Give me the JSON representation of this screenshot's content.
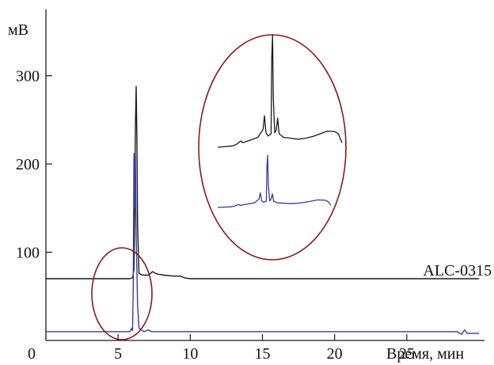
{
  "chart_data": {
    "type": "line",
    "title": "",
    "xlabel": "Время, мин",
    "ylabel": "мВ",
    "xlim": [
      0,
      30
    ],
    "ylim": [
      0,
      350
    ],
    "x_ticks": [
      0,
      5,
      10,
      15,
      20,
      25
    ],
    "y_ticks": [
      100,
      200,
      300
    ],
    "grid": false,
    "annotations": [
      {
        "text": "ALC-0315",
        "x": 27.5,
        "y": 80
      }
    ],
    "series": [
      {
        "color": "#1a1a1a",
        "points": [
          [
            0,
            70
          ],
          [
            5.8,
            70
          ],
          [
            6.0,
            71
          ],
          [
            6.1,
            80
          ],
          [
            6.15,
            140
          ],
          [
            6.2,
            240
          ],
          [
            6.25,
            288
          ],
          [
            6.3,
            230
          ],
          [
            6.35,
            130
          ],
          [
            6.45,
            76
          ],
          [
            6.7,
            74
          ],
          [
            7.1,
            74
          ],
          [
            7.4,
            78
          ],
          [
            7.6,
            76
          ],
          [
            7.8,
            75
          ],
          [
            8.2,
            74
          ],
          [
            8.8,
            73
          ],
          [
            9.3,
            73
          ],
          [
            9.6,
            71
          ],
          [
            10,
            70
          ],
          [
            30,
            70
          ]
        ]
      },
      {
        "color": "#3a3aa8",
        "points": [
          [
            0,
            10
          ],
          [
            5.8,
            10
          ],
          [
            5.95,
            14
          ],
          [
            6.0,
            11
          ],
          [
            6.05,
            60
          ],
          [
            6.1,
            212
          ],
          [
            6.15,
            150
          ],
          [
            6.2,
            210
          ],
          [
            6.25,
            120
          ],
          [
            6.35,
            40
          ],
          [
            6.45,
            14
          ],
          [
            6.6,
            12
          ],
          [
            6.8,
            10
          ],
          [
            7.1,
            12
          ],
          [
            7.3,
            10
          ],
          [
            28.5,
            10
          ],
          [
            28.8,
            7
          ],
          [
            29.0,
            12
          ],
          [
            29.2,
            8
          ],
          [
            30,
            8
          ]
        ]
      }
    ],
    "inset": {
      "description_zoom_of_range": [
        4.5,
        9.5
      ],
      "series": [
        {
          "color": "#1a1a1a",
          "points": [
            [
              0,
              0
            ],
            [
              2,
              0.3
            ],
            [
              2.5,
              0.6
            ],
            [
              3,
              1.2
            ],
            [
              3.2,
              1.4
            ],
            [
              3.4,
              1.0
            ],
            [
              4.3,
              1.5
            ],
            [
              5.5,
              2.2
            ],
            [
              6.2,
              4.0
            ],
            [
              6.4,
              7.0
            ],
            [
              6.6,
              3.2
            ],
            [
              6.9,
              2.5
            ],
            [
              7.3,
              3.0
            ],
            [
              7.4,
              20.0
            ],
            [
              7.5,
              25.0
            ],
            [
              7.6,
              11.0
            ],
            [
              7.8,
              3.2
            ],
            [
              8.0,
              3.8
            ],
            [
              8.2,
              6.5
            ],
            [
              8.4,
              3.0
            ],
            [
              9.0,
              2.2
            ],
            [
              10,
              2.0
            ],
            [
              11,
              1.8
            ],
            [
              12,
              2.0
            ],
            [
              13,
              2.4
            ],
            [
              14,
              3.0
            ],
            [
              15,
              3.6
            ],
            [
              16,
              3.5
            ],
            [
              16.5,
              3.0
            ],
            [
              17,
              1.0
            ]
          ]
        },
        {
          "color": "#3a3aa8",
          "points": [
            [
              0,
              0
            ],
            [
              2,
              0.3
            ],
            [
              2.5,
              0.6
            ],
            [
              3,
              1.2
            ],
            [
              3.2,
              1.4
            ],
            [
              3.4,
              1.0
            ],
            [
              4.3,
              1.5
            ],
            [
              5.5,
              2.2
            ],
            [
              6.2,
              4.0
            ],
            [
              6.4,
              7.0
            ],
            [
              6.6,
              3.2
            ],
            [
              6.9,
              2.5
            ],
            [
              7.3,
              3.0
            ],
            [
              7.4,
              20.0
            ],
            [
              7.5,
              25.0
            ],
            [
              7.6,
              11.0
            ],
            [
              7.8,
              3.2
            ],
            [
              8.0,
              3.8
            ],
            [
              8.2,
              6.5
            ],
            [
              8.4,
              3.0
            ],
            [
              9.0,
              2.2
            ],
            [
              10,
              2.0
            ],
            [
              11,
              1.8
            ],
            [
              12,
              2.0
            ],
            [
              13,
              2.4
            ],
            [
              14,
              3.0
            ],
            [
              15,
              3.6
            ],
            [
              16,
              3.5
            ],
            [
              16.5,
              3.0
            ],
            [
              17,
              1.0
            ]
          ]
        }
      ]
    }
  }
}
